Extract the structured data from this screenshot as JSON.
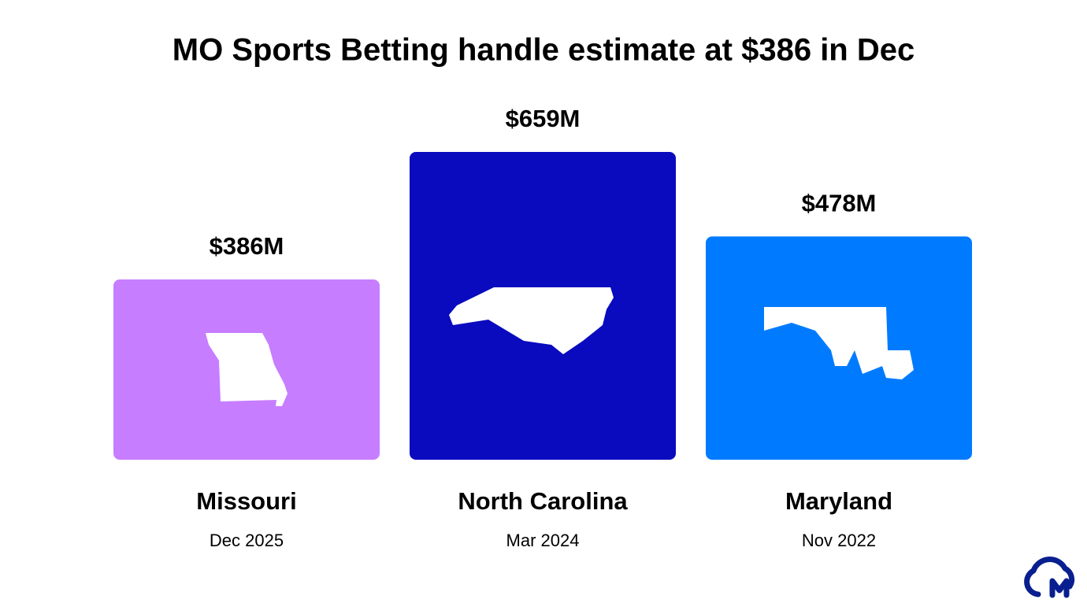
{
  "chart_data": {
    "type": "bar",
    "title": "MO Sports Betting handle estimate at $386 in Dec",
    "categories": [
      "Missouri",
      "North Carolina",
      "Maryland"
    ],
    "dates": [
      "Dec 2025",
      "Mar 2024",
      "Nov 2022"
    ],
    "values": [
      386,
      659,
      478
    ],
    "value_labels": [
      "$386M",
      "$659M",
      "$478M"
    ],
    "colors": [
      "#c77dff",
      "#0a0abf",
      "#007bff"
    ]
  }
}
